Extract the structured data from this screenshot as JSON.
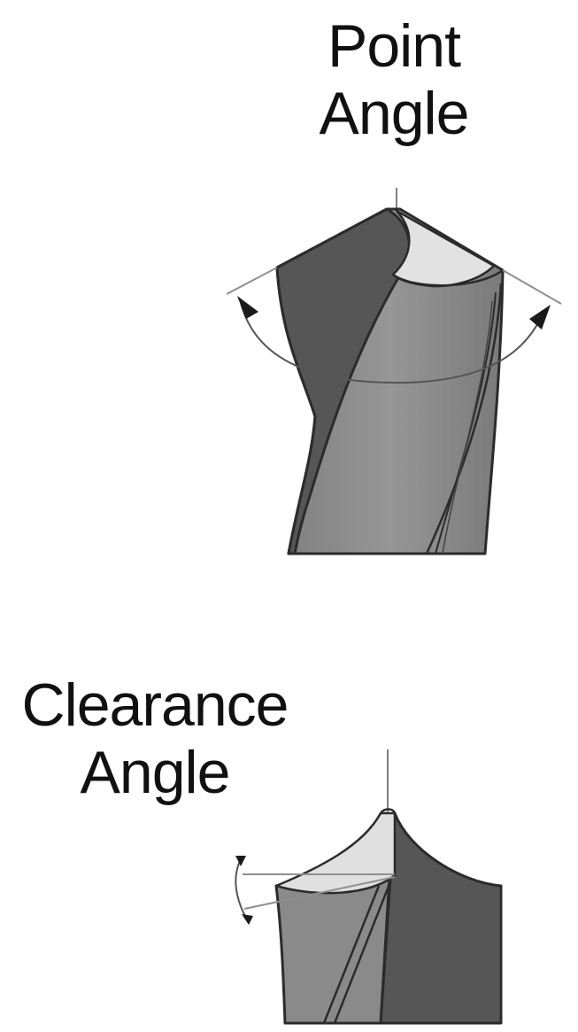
{
  "figure": {
    "point_angle": {
      "line1": "Point",
      "line2": "Angle"
    },
    "clearance_angle": {
      "line1": "Clearance",
      "line2": "Angle"
    }
  },
  "colors": {
    "body_mid": "#8a8a8a",
    "body_dark": "#5a5a5a",
    "flank_dark": "#4e4e4e",
    "tip_light": "#e2e2e2",
    "outline": "#2b2b2b",
    "guide": "#8f8f8f"
  }
}
